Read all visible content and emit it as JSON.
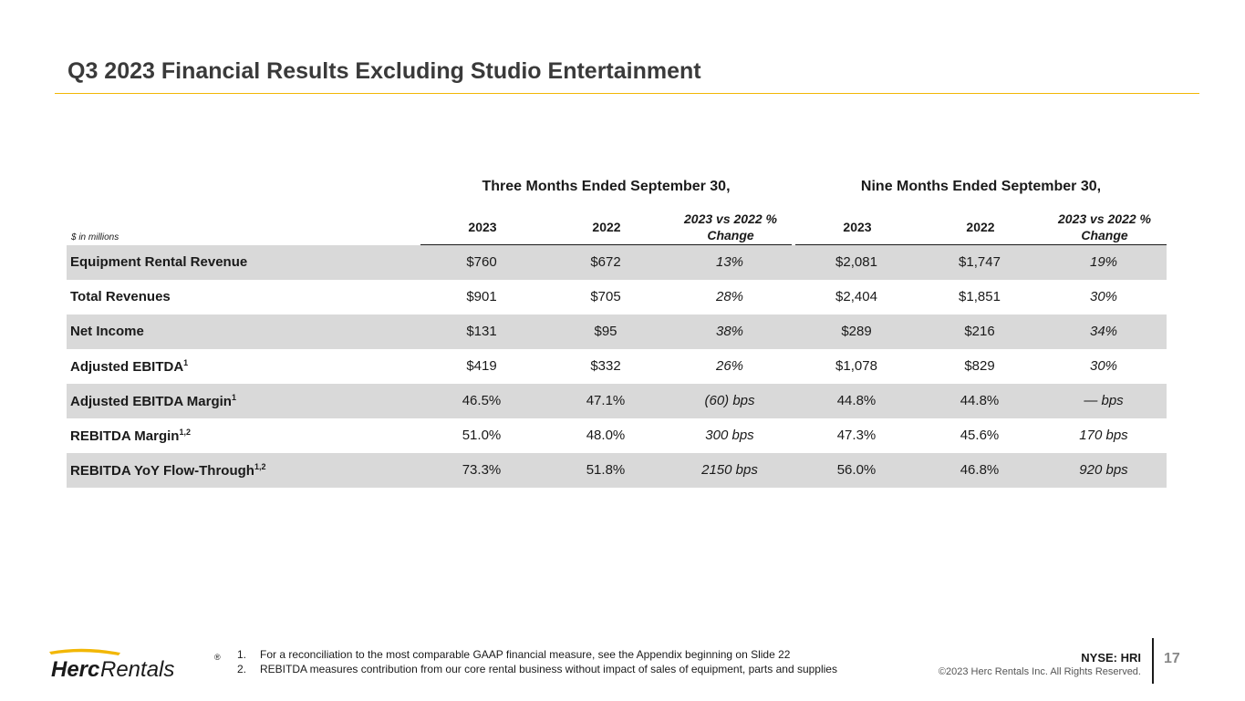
{
  "title": "Q3 2023 Financial Results Excluding Studio Entertainment",
  "groups": {
    "three_months": "Three Months Ended September 30,",
    "nine_months": "Nine Months Ended September 30,"
  },
  "unit_note": "$ in millions",
  "columns": {
    "y2023": "2023",
    "y2022": "2022",
    "change_line1": "2023 vs 2022 %",
    "change_line2": "Change"
  },
  "rows": [
    {
      "label": "Equipment Rental Revenue",
      "sup": "",
      "q_2023": "$760",
      "q_2022": "$672",
      "q_chg": "13%",
      "n_2023": "$2,081",
      "n_2022": "$1,747",
      "n_chg": "19%"
    },
    {
      "label": "Total Revenues",
      "sup": "",
      "q_2023": "$901",
      "q_2022": "$705",
      "q_chg": "28%",
      "n_2023": "$2,404",
      "n_2022": "$1,851",
      "n_chg": "30%"
    },
    {
      "label": "Net Income",
      "sup": "",
      "q_2023": "$131",
      "q_2022": "$95",
      "q_chg": "38%",
      "n_2023": "$289",
      "n_2022": "$216",
      "n_chg": "34%"
    },
    {
      "label": "Adjusted EBITDA",
      "sup": "1",
      "q_2023": "$419",
      "q_2022": "$332",
      "q_chg": "26%",
      "n_2023": "$1,078",
      "n_2022": "$829",
      "n_chg": "30%"
    },
    {
      "label": "Adjusted EBITDA Margin",
      "sup": "1",
      "q_2023": "46.5%",
      "q_2022": "47.1%",
      "q_chg": "(60) bps",
      "n_2023": "44.8%",
      "n_2022": "44.8%",
      "n_chg": "— bps"
    },
    {
      "label": "REBITDA Margin",
      "sup": "1,2",
      "q_2023": "51.0%",
      "q_2022": "48.0%",
      "q_chg": "300 bps",
      "n_2023": "47.3%",
      "n_2022": "45.6%",
      "n_chg": "170 bps"
    },
    {
      "label": "REBITDA YoY Flow-Through",
      "sup": "1,2",
      "q_2023": "73.3%",
      "q_2022": "51.8%",
      "q_chg": "2150 bps",
      "n_2023": "56.0%",
      "n_2022": "46.8%",
      "n_chg": "920 bps"
    }
  ],
  "footnotes": [
    {
      "num": "1.",
      "text": "For a reconciliation to the most comparable GAAP financial measure, see the Appendix beginning on Slide 22"
    },
    {
      "num": "2.",
      "text": "REBITDA measures contribution from our core rental business without impact of sales of equipment, parts and supplies"
    }
  ],
  "logo": {
    "word1": "Herc",
    "word2": "Rentals",
    "mark": "®"
  },
  "ticker": "NYSE: HRI",
  "copyright": "©2023 Herc Rentals Inc.  All Rights Reserved.",
  "page_number": "17",
  "colors": {
    "accent": "#f2b705",
    "row_shade": "#d9d9d9"
  }
}
